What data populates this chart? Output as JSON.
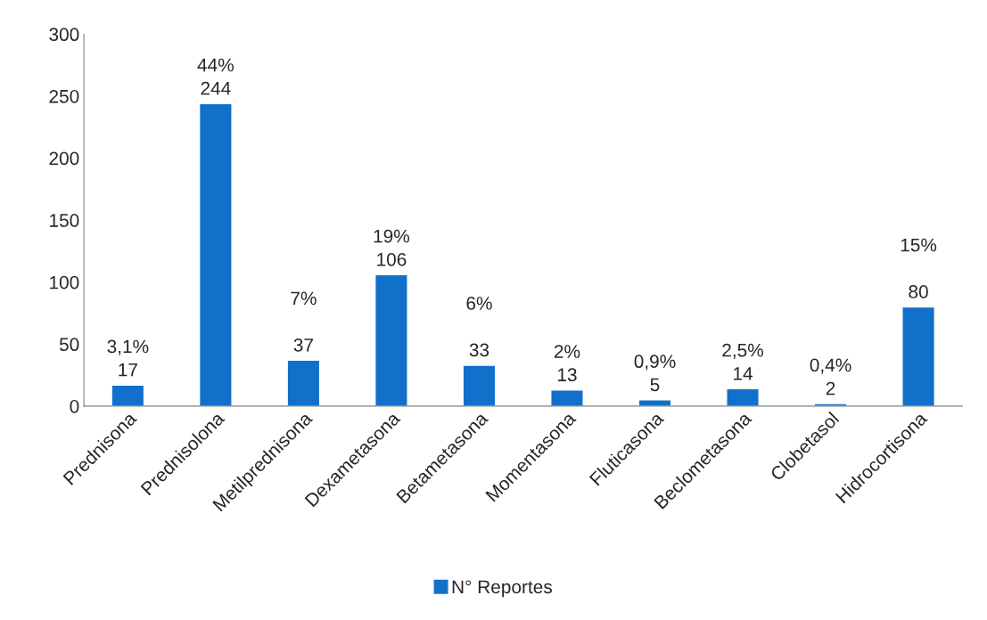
{
  "chart_data": {
    "type": "bar",
    "categories": [
      "Prednisona",
      "Prednisolona",
      "Metilprednisona",
      "Dexametasona",
      "Betametasona",
      "Momentasona",
      "Fluticasona",
      "Beclometasona",
      "Clobetasol",
      "Hidrocortisona"
    ],
    "series": [
      {
        "name": "N° Reportes",
        "color": "#1170c9",
        "values": [
          17,
          244,
          37,
          106,
          33,
          13,
          5,
          14,
          2,
          80
        ],
        "value_labels": [
          "3,1%\n17",
          "44%\n244",
          "7%\n\n37",
          "19%\n106",
          "6%\n\n33",
          "2%\n13",
          "0,9%\n5",
          "2,5%\n14",
          "0,4%\n2",
          "15%\n\n80"
        ]
      }
    ],
    "ylim": [
      0,
      300
    ],
    "yticks": [
      0,
      50,
      100,
      150,
      200,
      250,
      300
    ],
    "grid": false,
    "legend": "bottom"
  }
}
